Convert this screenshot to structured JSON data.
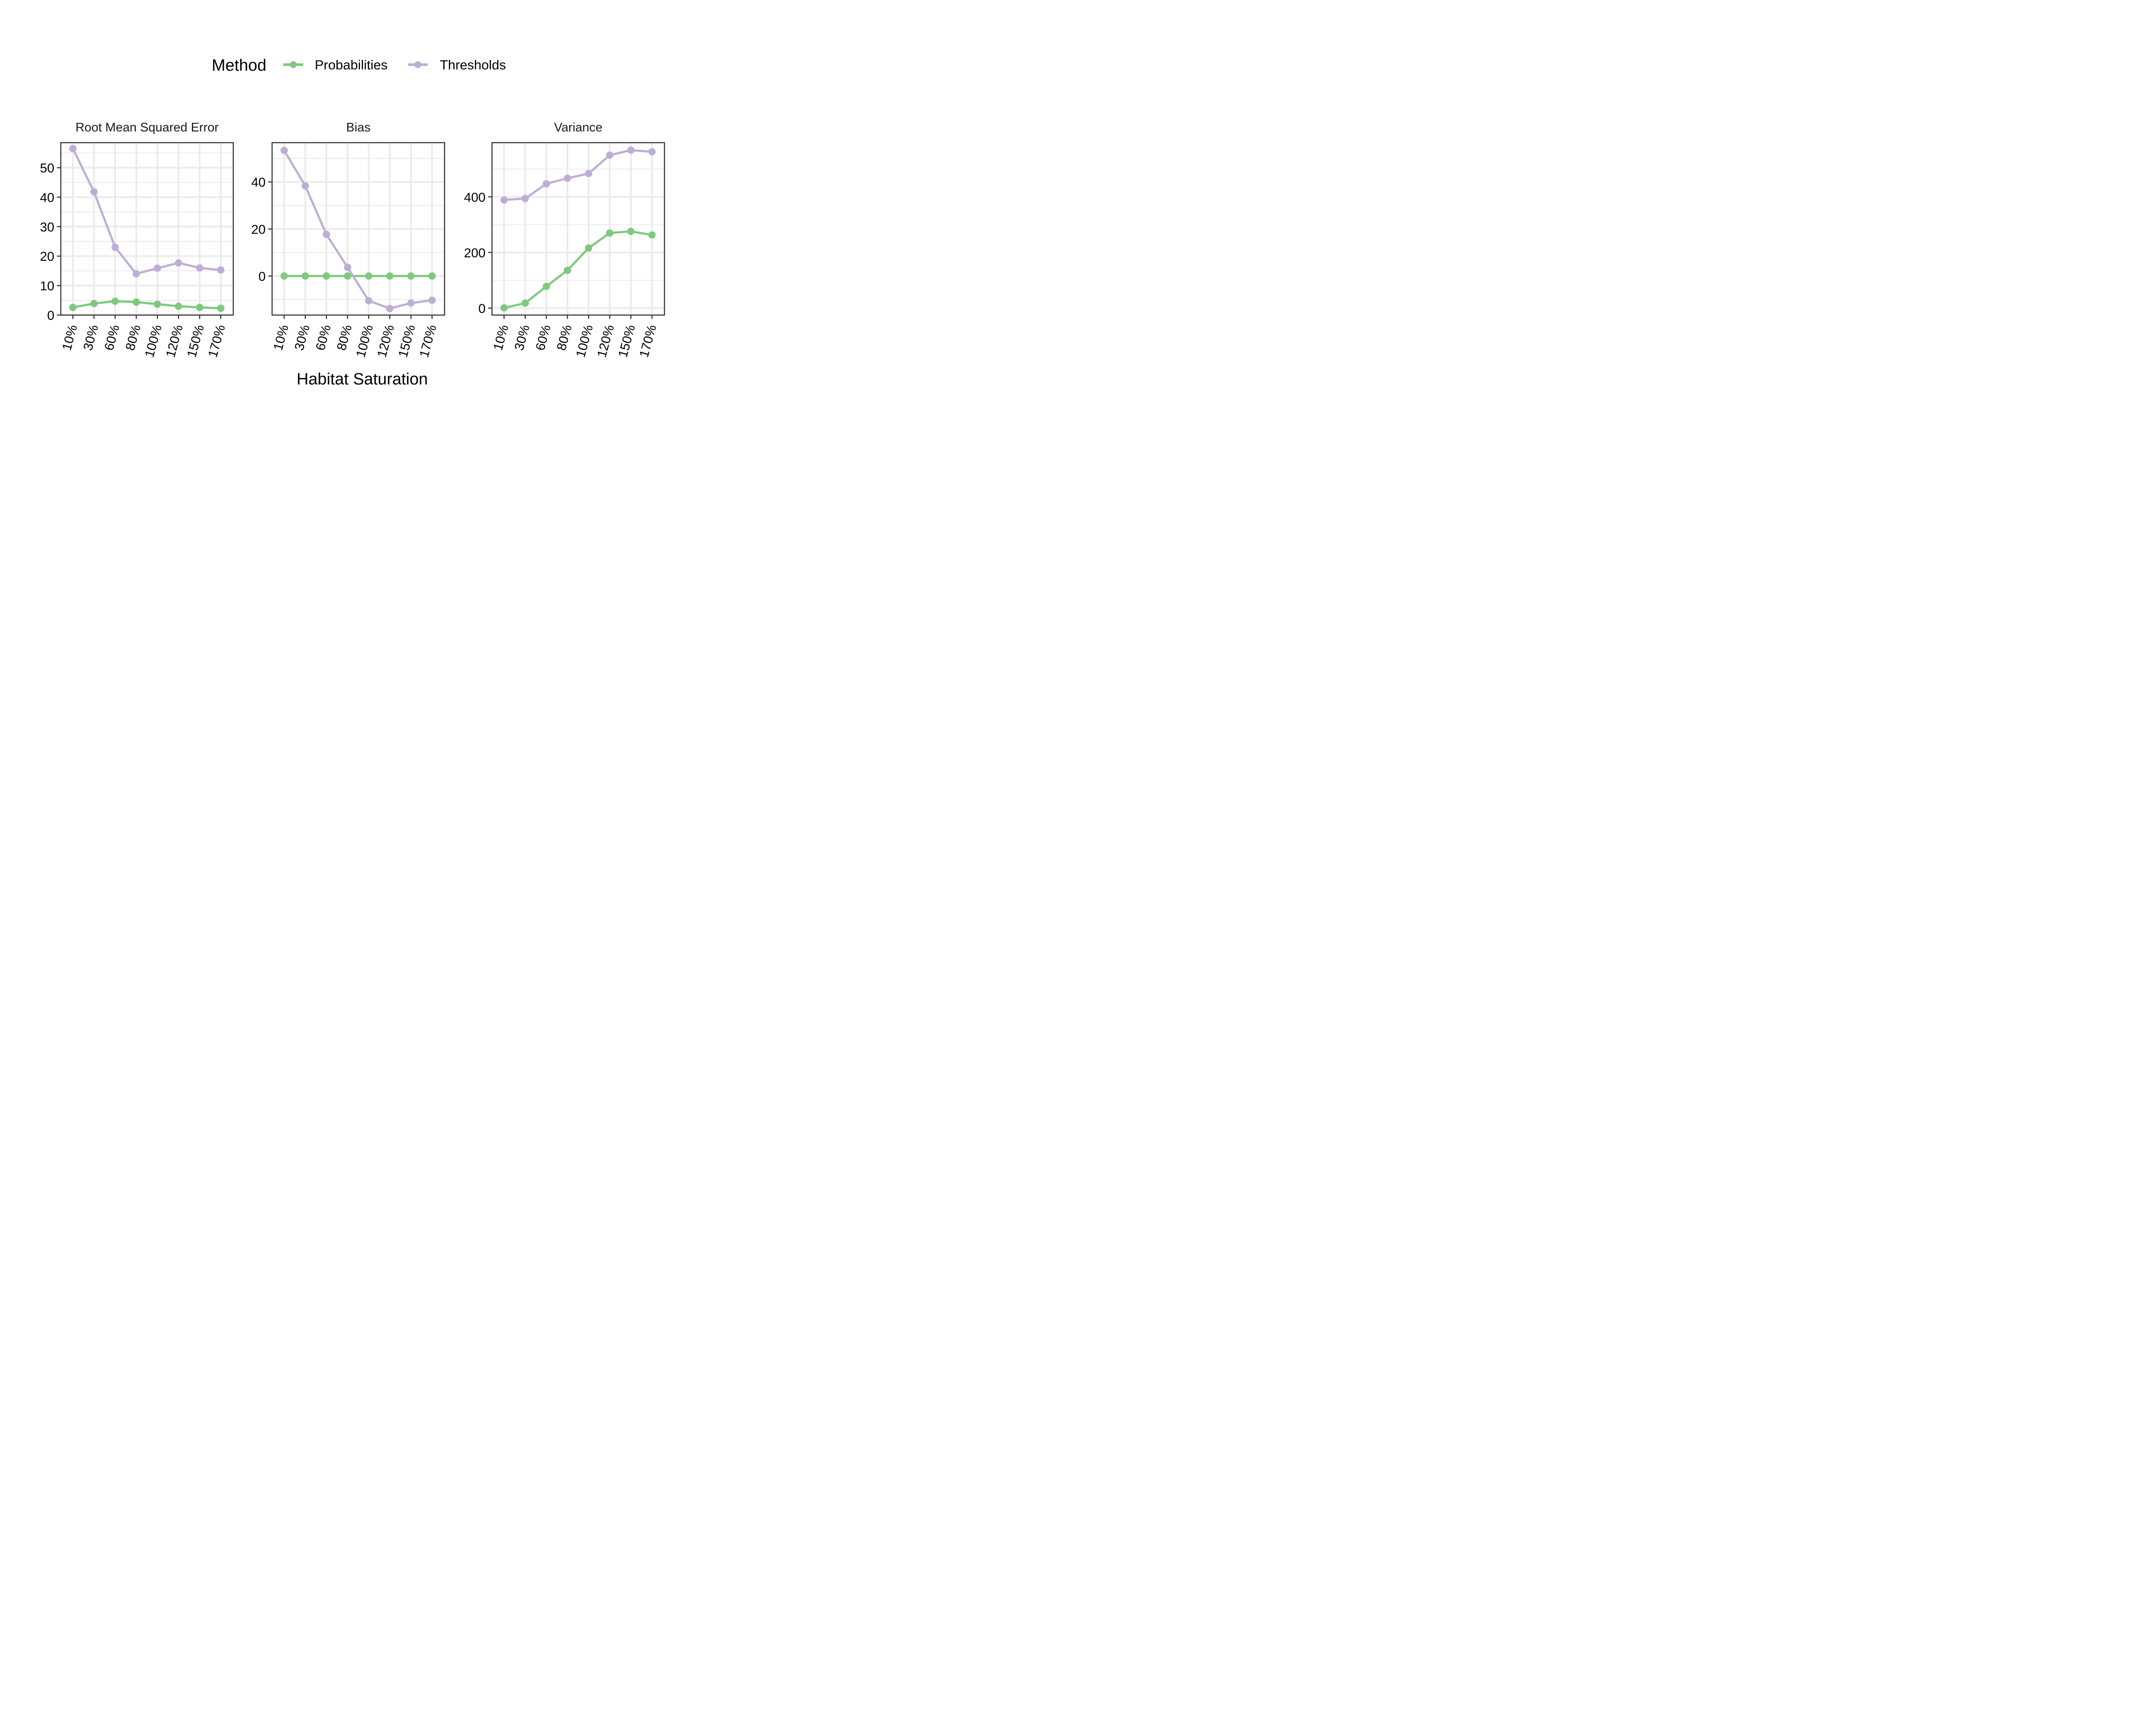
{
  "figure": {
    "legend_title": "Method",
    "legend_position": "top-center",
    "x_axis_title": "Habitat Saturation",
    "grid": true
  },
  "colors": {
    "Probabilities": "#7fc97f",
    "Thresholds": "#beaed4",
    "panel_border": "#333333",
    "grid": "#ebebeb",
    "text": "#000000"
  },
  "chart_data": [
    {
      "type": "line",
      "title": "Root Mean Squared Error",
      "categories": [
        "10%",
        "30%",
        "60%",
        "80%",
        "100%",
        "120%",
        "150%",
        "170%"
      ],
      "ylim": [
        0,
        58.5
      ],
      "yticks": [
        0,
        10,
        20,
        30,
        40,
        50
      ],
      "series": [
        {
          "name": "Probabilities",
          "values": [
            2.6,
            3.9,
            4.7,
            4.4,
            3.7,
            3.0,
            2.6,
            2.3
          ]
        },
        {
          "name": "Thresholds",
          "values": [
            56.5,
            41.8,
            23.0,
            14.0,
            15.9,
            17.7,
            16.0,
            15.3
          ]
        }
      ]
    },
    {
      "type": "line",
      "title": "Bias",
      "categories": [
        "10%",
        "30%",
        "60%",
        "80%",
        "100%",
        "120%",
        "150%",
        "170%"
      ],
      "ylim": [
        -16.6,
        56.7
      ],
      "yticks": [
        0,
        20,
        40
      ],
      "series": [
        {
          "name": "Probabilities",
          "values": [
            0,
            0,
            0,
            0,
            0,
            0,
            0,
            0
          ]
        },
        {
          "name": "Thresholds",
          "values": [
            53.4,
            38.3,
            17.7,
            3.7,
            -10.5,
            -13.8,
            -11.5,
            -10.3
          ]
        }
      ]
    },
    {
      "type": "line",
      "title": "Variance",
      "categories": [
        "10%",
        "30%",
        "60%",
        "80%",
        "100%",
        "120%",
        "150%",
        "170%"
      ],
      "ylim": [
        -25,
        595
      ],
      "yticks": [
        0,
        200,
        400
      ],
      "series": [
        {
          "name": "Probabilities",
          "values": [
            1,
            18,
            78,
            136,
            216,
            270,
            276,
            263
          ]
        },
        {
          "name": "Thresholds",
          "values": [
            389,
            394,
            447,
            467,
            484,
            550,
            568,
            562
          ]
        }
      ]
    }
  ]
}
